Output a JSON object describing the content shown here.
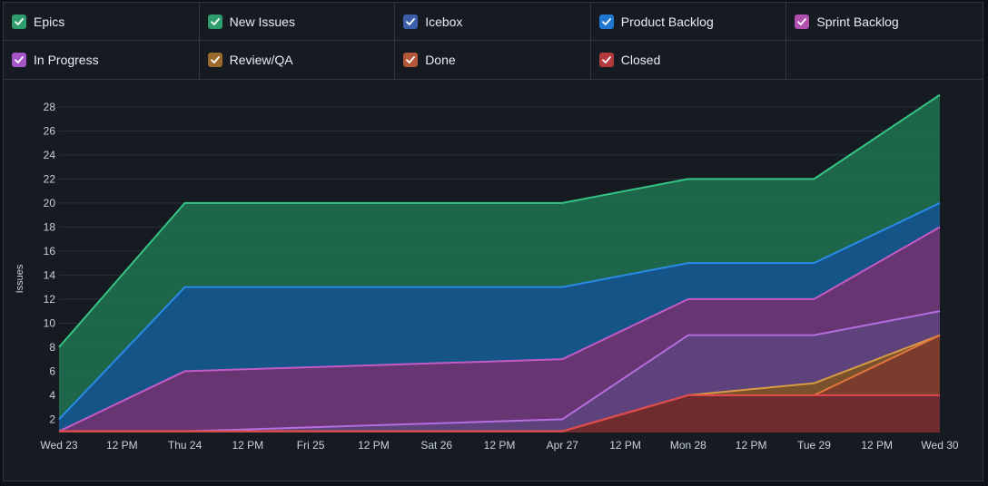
{
  "legend": {
    "items": [
      {
        "label": "Epics",
        "color": "#2f9e6e"
      },
      {
        "label": "New Issues",
        "color": "#2f9e6e"
      },
      {
        "label": "Icebox",
        "color": "#3b5fa8"
      },
      {
        "label": "Product Backlog",
        "color": "#1f78d1"
      },
      {
        "label": "Sprint Backlog",
        "color": "#b04fb0"
      },
      {
        "label": "In Progress",
        "color": "#a455c8"
      },
      {
        "label": "Review/QA",
        "color": "#9a6a2c"
      },
      {
        "label": "Done",
        "color": "#b4583a"
      },
      {
        "label": "Closed",
        "color": "#b23a3f"
      }
    ]
  },
  "chart_data": {
    "type": "area",
    "ylabel": "Issues",
    "yticks": [
      "2",
      "4",
      "6",
      "8",
      "10",
      "12",
      "14",
      "16",
      "18",
      "20",
      "22",
      "24",
      "26",
      "28"
    ],
    "xticks": [
      "Wed 23",
      "12 PM",
      "Thu 24",
      "12 PM",
      "Fri 25",
      "12 PM",
      "Sat 26",
      "12 PM",
      "Apr 27",
      "12 PM",
      "Mon 28",
      "12 PM",
      "Tue 29",
      "12 PM",
      "Wed 30"
    ],
    "x": [
      0,
      1,
      4,
      5,
      6,
      7
    ],
    "ylim": [
      0.9,
      29.5
    ],
    "xlim": [
      0,
      7
    ],
    "grid": true,
    "series": [
      {
        "name": "New Issues",
        "line": "#34c483",
        "fill": "#1e6a4d",
        "values": [
          8,
          20,
          20,
          22,
          22,
          29
        ]
      },
      {
        "name": "Product Backlog",
        "line": "#2a8ae8",
        "fill": "#14538a",
        "values": [
          2,
          13,
          13,
          15,
          15,
          20
        ]
      },
      {
        "name": "Sprint Backlog",
        "line": "#c35bc6",
        "fill": "#6b3470",
        "values": [
          1,
          6,
          7,
          12,
          12,
          18
        ]
      },
      {
        "name": "In Progress",
        "line": "#b56de0",
        "fill": "#5e437c",
        "values": [
          1,
          1,
          2,
          9,
          9,
          11
        ]
      },
      {
        "name": "Review/QA",
        "line": "#d89a45",
        "fill": "#7a5228",
        "values": [
          1,
          1,
          1,
          4,
          5,
          9
        ]
      },
      {
        "name": "Done",
        "line": "#e0763e",
        "fill": "#7a3b2c",
        "values": [
          1,
          1,
          1,
          4,
          4,
          9
        ]
      },
      {
        "name": "Closed",
        "line": "#e0484e",
        "fill": "#6e2a30",
        "values": [
          1,
          1,
          1,
          4,
          4,
          4
        ]
      }
    ]
  }
}
